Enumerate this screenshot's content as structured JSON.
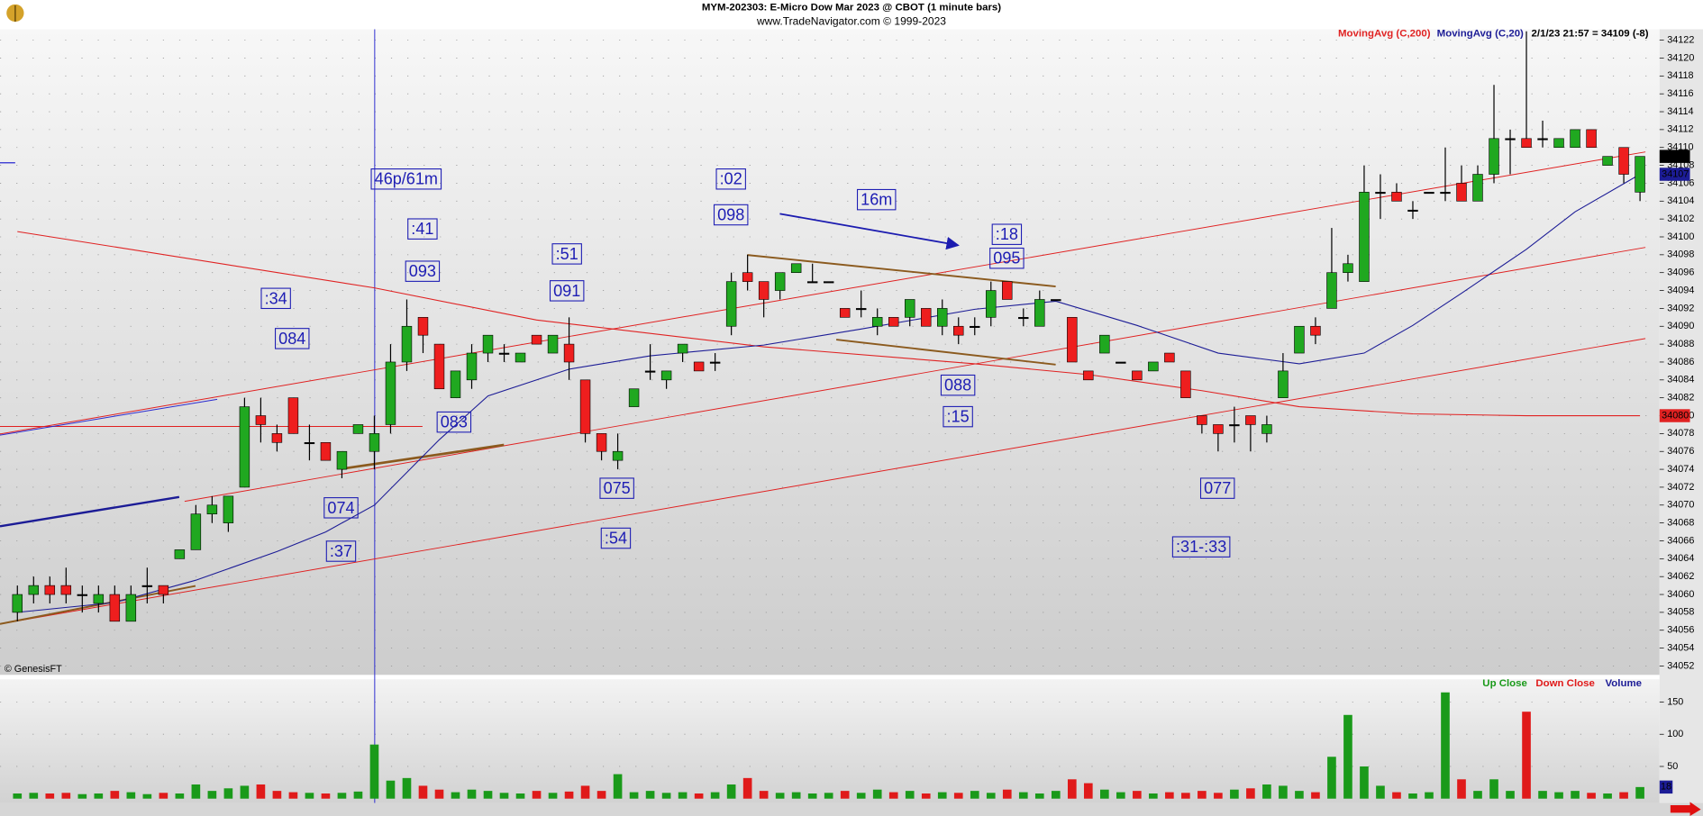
{
  "chart_data": [
    {
      "type": "candlestick",
      "title": "MYM-202303:  E-Micro Dow Mar 2023 @ CBOT  (1 minute bars)",
      "subtitle": "www.TradeNavigator.com © 1999-2023",
      "watermark": "© GenesisFT",
      "last_info": "2/1/23 21:57 = 34109 (-8)",
      "up_color": "#20a820",
      "down_color": "#ee1e1e",
      "ylim": [
        34051,
        34123
      ],
      "yticks": [
        34052,
        34054,
        34056,
        34058,
        34060,
        34062,
        34064,
        34066,
        34068,
        34070,
        34072,
        34074,
        34076,
        34078,
        34080,
        34082,
        34084,
        34086,
        34088,
        34090,
        34092,
        34094,
        34096,
        34098,
        34100,
        34102,
        34104,
        34106,
        34108,
        34110,
        34112,
        34114,
        34116,
        34118,
        34120,
        34122
      ],
      "grid": true,
      "ohlc": [
        [
          34058,
          34061,
          34057,
          34060
        ],
        [
          34060,
          34062,
          34059,
          34061
        ],
        [
          34061,
          34062,
          34059,
          34060
        ],
        [
          34061,
          34063,
          34059,
          34060
        ],
        [
          34060,
          34061,
          34058,
          34060
        ],
        [
          34059,
          34061,
          34058,
          34060
        ],
        [
          34060,
          34061,
          34057,
          34057
        ],
        [
          34057,
          34061,
          34057,
          34060
        ],
        [
          34061,
          34063,
          34059,
          34061
        ],
        [
          34061,
          34061,
          34059,
          34060
        ],
        [
          34064,
          34065,
          34064,
          34065
        ],
        [
          34065,
          34070,
          34065,
          34069
        ],
        [
          34069,
          34071,
          34068,
          34070
        ],
        [
          34068,
          34071,
          34067,
          34071
        ],
        [
          34072,
          34082,
          34072,
          34081
        ],
        [
          34080,
          34082,
          34077,
          34079
        ],
        [
          34078,
          34079,
          34076,
          34077
        ],
        [
          34082,
          34082,
          34078,
          34078
        ],
        [
          34077,
          34079,
          34075,
          34077
        ],
        [
          34077,
          34077,
          34075,
          34075
        ],
        [
          34074,
          34076,
          34073,
          34076
        ],
        [
          34078,
          34079,
          34078,
          34079
        ],
        [
          34076,
          34080,
          34074,
          34078
        ],
        [
          34079,
          34088,
          34078,
          34086
        ],
        [
          34086,
          34093,
          34085,
          34090
        ],
        [
          34091,
          34091,
          34087,
          34089
        ],
        [
          34088,
          34088,
          34083,
          34083
        ],
        [
          34082,
          34085,
          34082,
          34085
        ],
        [
          34084,
          34088,
          34083,
          34087
        ],
        [
          34087,
          34089,
          34086,
          34089
        ],
        [
          34087,
          34088,
          34086,
          34087
        ],
        [
          34086,
          34087,
          34086,
          34087
        ],
        [
          34089,
          34089,
          34088,
          34088
        ],
        [
          34087,
          34089,
          34087,
          34089
        ],
        [
          34088,
          34091,
          34084,
          34086
        ],
        [
          34084,
          34084,
          34077,
          34078
        ],
        [
          34078,
          34078,
          34075,
          34076
        ],
        [
          34075,
          34078,
          34074,
          34076
        ],
        [
          34081,
          34083,
          34081,
          34083
        ],
        [
          34085,
          34088,
          34084,
          34085
        ],
        [
          34084,
          34085,
          34083,
          34085
        ],
        [
          34087,
          34088,
          34086,
          34088
        ],
        [
          34086,
          34086,
          34085,
          34085
        ],
        [
          34086,
          34087,
          34085,
          34086
        ],
        [
          34090,
          34096,
          34089,
          34095
        ],
        [
          34096,
          34098,
          34094,
          34095
        ],
        [
          34095,
          34095,
          34091,
          34093
        ],
        [
          34094,
          34096,
          34093,
          34096
        ],
        [
          34096,
          34097,
          34096,
          34097
        ],
        [
          34095,
          34097,
          34095,
          34095
        ],
        [
          34095,
          34095,
          34095,
          34095
        ],
        [
          34092,
          34092,
          34091,
          34091
        ],
        [
          34092,
          34094,
          34091,
          34092
        ],
        [
          34090,
          34092,
          34089,
          34091
        ],
        [
          34091,
          34091,
          34090,
          34090
        ],
        [
          34091,
          34093,
          34090,
          34093
        ],
        [
          34092,
          34092,
          34090,
          34090
        ],
        [
          34090,
          34093,
          34089,
          34092
        ],
        [
          34090,
          34091,
          34088,
          34089
        ],
        [
          34090,
          34091,
          34089,
          34090
        ],
        [
          34091,
          34095,
          34090,
          34094
        ],
        [
          34095,
          34095,
          34093,
          34093
        ],
        [
          34091,
          34092,
          34090,
          34091
        ],
        [
          34090,
          34094,
          34090,
          34093
        ],
        [
          34093,
          34093,
          34093,
          34093
        ],
        [
          34091,
          34091,
          34086,
          34086
        ],
        [
          34085,
          34085,
          34084,
          34084
        ],
        [
          34087,
          34089,
          34087,
          34089
        ],
        [
          34086,
          34086,
          34086,
          34086
        ],
        [
          34085,
          34085,
          34084,
          34084
        ],
        [
          34085,
          34086,
          34085,
          34086
        ],
        [
          34087,
          34087,
          34086,
          34086
        ],
        [
          34085,
          34085,
          34082,
          34082
        ],
        [
          34080,
          34080,
          34078,
          34079
        ],
        [
          34079,
          34079,
          34076,
          34078
        ],
        [
          34079,
          34081,
          34077,
          34079
        ],
        [
          34080,
          34080,
          34076,
          34079
        ],
        [
          34078,
          34080,
          34077,
          34079
        ],
        [
          34082,
          34087,
          34082,
          34085
        ],
        [
          34087,
          34090,
          34087,
          34090
        ],
        [
          34090,
          34091,
          34088,
          34089
        ],
        [
          34092,
          34101,
          34092,
          34096
        ],
        [
          34096,
          34098,
          34095,
          34097
        ],
        [
          34095,
          34108,
          34095,
          34105
        ],
        [
          34105,
          34107,
          34102,
          34105
        ],
        [
          34105,
          34106,
          34104,
          34104
        ],
        [
          34103,
          34104,
          34102,
          34103
        ],
        [
          34105,
          34105,
          34105,
          34105
        ],
        [
          34105,
          34110,
          34104,
          34105
        ],
        [
          34106,
          34108,
          34104,
          34104
        ],
        [
          34104,
          34108,
          34104,
          34107
        ],
        [
          34107,
          34117,
          34106,
          34111
        ],
        [
          34111,
          34112,
          34107,
          34111
        ],
        [
          34111,
          34123,
          34110,
          34110
        ],
        [
          34111,
          34113,
          34110,
          34111
        ],
        [
          34110,
          34111,
          34110,
          34111
        ],
        [
          34110,
          34112,
          34110,
          34112
        ],
        [
          34112,
          34112,
          34110,
          34110
        ],
        [
          34108,
          34109,
          34108,
          34109
        ],
        [
          34110,
          34110,
          34106,
          34107
        ],
        [
          34105,
          34109,
          34104,
          34109
        ]
      ],
      "series": [
        {
          "name": "MovingAvg (C,200)",
          "color": "#e02222",
          "x": [
            0,
            22,
            32,
            46,
            59,
            66,
            73,
            79,
            86,
            93,
            100
          ],
          "values": [
            34100.6,
            34094.3,
            34090.7,
            34087.7,
            34085.8,
            34084.6,
            34082.8,
            34081,
            34080.2,
            34080,
            34080
          ]
        },
        {
          "name": "MovingAvg (C,20)",
          "color": "#1c1c96",
          "x": [
            0,
            6,
            11,
            16,
            19,
            22,
            26,
            29,
            34,
            39,
            46,
            52,
            59,
            64,
            69,
            74,
            79,
            83,
            86,
            89,
            93,
            96,
            100
          ],
          "values": [
            34058,
            34059.1,
            34061.6,
            34064.8,
            34067,
            34070,
            34077.3,
            34082.2,
            34085.2,
            34086.7,
            34087.9,
            34089.7,
            34091.9,
            34092.8,
            34090.1,
            34087,
            34085.8,
            34087,
            34090.1,
            34093.7,
            34098.6,
            34102.8,
            34107
          ]
        }
      ],
      "annotations": [
        "46p/61m",
        ":41",
        "093",
        ":34",
        "084",
        ":51",
        "091",
        "083",
        "074",
        ":37",
        "075",
        ":54",
        ":02",
        "098",
        "16m",
        ":18",
        "095",
        "088",
        ":15",
        "077",
        ":31-:33"
      ]
    },
    {
      "type": "volume",
      "ylim": [
        0,
        182
      ],
      "yticks": [
        50,
        100,
        150
      ],
      "legend": [
        {
          "name": "Up Close",
          "color": "#1a9a1a"
        },
        {
          "name": "Down Close",
          "color": "#e01a1a"
        },
        {
          "name": "Volume",
          "color": "#1c1c96"
        }
      ],
      "values": [
        8,
        9,
        8,
        9,
        7,
        8,
        12,
        10,
        7,
        9,
        8,
        22,
        12,
        16,
        20,
        22,
        12,
        10,
        9,
        8,
        9,
        11,
        84,
        28,
        32,
        20,
        14,
        10,
        14,
        12,
        9,
        8,
        12,
        9,
        11,
        20,
        12,
        38,
        10,
        12,
        9,
        10,
        8,
        10,
        22,
        32,
        12,
        9,
        10,
        8,
        9,
        12,
        9,
        14,
        10,
        12,
        8,
        10,
        9,
        12,
        9,
        14,
        10,
        8,
        12,
        30,
        24,
        14,
        10,
        12,
        8,
        10,
        9,
        12,
        9,
        14,
        16,
        22,
        20,
        12,
        10,
        65,
        130,
        50,
        20,
        10,
        8,
        10,
        165,
        30,
        12,
        30,
        12,
        135,
        12,
        10,
        12,
        9,
        8,
        10,
        18
      ]
    }
  ]
}
